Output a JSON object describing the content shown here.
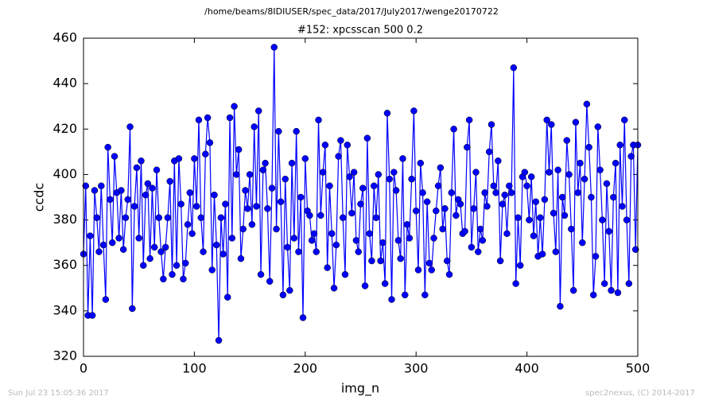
{
  "chart_data": {
    "type": "line",
    "suptitle": "/home/beams/8IDIUSER/spec_data/2017/July2017/wenge20170722",
    "title": "#152: xpcsscan 500 0.2",
    "x_label": "img_n",
    "y_label": "ccdc",
    "x": [
      0,
      2,
      4,
      6,
      8,
      10,
      12,
      14,
      16,
      18,
      20,
      22,
      24,
      26,
      28,
      30,
      32,
      34,
      36,
      38,
      40,
      42,
      44,
      46,
      48,
      50,
      52,
      54,
      56,
      58,
      60,
      62,
      64,
      66,
      68,
      70,
      72,
      74,
      76,
      78,
      80,
      82,
      84,
      86,
      88,
      90,
      92,
      94,
      96,
      98,
      100,
      102,
      104,
      106,
      108,
      110,
      112,
      114,
      116,
      118,
      120,
      122,
      124,
      126,
      128,
      130,
      132,
      134,
      136,
      138,
      140,
      142,
      144,
      146,
      148,
      150,
      152,
      154,
      156,
      158,
      160,
      162,
      164,
      166,
      168,
      170,
      172,
      174,
      176,
      178,
      180,
      182,
      184,
      186,
      188,
      190,
      192,
      194,
      196,
      198,
      200,
      202,
      204,
      206,
      208,
      210,
      212,
      214,
      216,
      218,
      220,
      222,
      224,
      226,
      228,
      230,
      232,
      234,
      236,
      238,
      240,
      242,
      244,
      246,
      248,
      250,
      252,
      254,
      256,
      258,
      260,
      262,
      264,
      266,
      268,
      270,
      272,
      274,
      276,
      278,
      280,
      282,
      284,
      286,
      288,
      290,
      292,
      294,
      296,
      298,
      300,
      302,
      304,
      306,
      308,
      310,
      312,
      314,
      316,
      318,
      320,
      322,
      324,
      326,
      328,
      330,
      332,
      334,
      336,
      338,
      340,
      342,
      344,
      346,
      348,
      350,
      352,
      354,
      356,
      358,
      360,
      362,
      364,
      366,
      368,
      370,
      372,
      374,
      376,
      378,
      380,
      382,
      384,
      386,
      388,
      390,
      392,
      394,
      396,
      398,
      400,
      402,
      404,
      406,
      408,
      410,
      412,
      414,
      416,
      418,
      420,
      422,
      424,
      426,
      428,
      430,
      432,
      434,
      436,
      438,
      440,
      442,
      444,
      446,
      448,
      450,
      452,
      454,
      456,
      458,
      460,
      462,
      464,
      466,
      468,
      470,
      472,
      474,
      476,
      478,
      480,
      482,
      484,
      486,
      488,
      490,
      492,
      494,
      496,
      498,
      500
    ],
    "series": [
      {
        "color": "#0000ff",
        "values": [
          365,
          395,
          338,
          373,
          338,
          393,
          381,
          366,
          395,
          369,
          345,
          412,
          389,
          370,
          408,
          392,
          372,
          393,
          367,
          381,
          389,
          421,
          341,
          386,
          403,
          372,
          406,
          360,
          391,
          396,
          363,
          394,
          368,
          402,
          381,
          366,
          354,
          368,
          381,
          397,
          356,
          406,
          360,
          407,
          387,
          354,
          361,
          378,
          392,
          374,
          407,
          386,
          424,
          381,
          366,
          409,
          425,
          414,
          358,
          391,
          369,
          327,
          381,
          365,
          387,
          346,
          425,
          372,
          430,
          400,
          411,
          363,
          376,
          393,
          385,
          400,
          378,
          421,
          386,
          428,
          356,
          402,
          405,
          385,
          353,
          394,
          456,
          376,
          419,
          388,
          347,
          398,
          368,
          349,
          405,
          372,
          419,
          366,
          390,
          337,
          407,
          384,
          382,
          371,
          374,
          366,
          424,
          382,
          401,
          413,
          359,
          395,
          374,
          350,
          369,
          408,
          415,
          381,
          356,
          413,
          399,
          383,
          401,
          371,
          366,
          387,
          394,
          351,
          416,
          374,
          362,
          395,
          381,
          400,
          362,
          370,
          352,
          427,
          398,
          345,
          401,
          393,
          371,
          363,
          407,
          347,
          378,
          372,
          398,
          428,
          384,
          358,
          405,
          392,
          347,
          388,
          361,
          358,
          372,
          384,
          395,
          403,
          376,
          385,
          362,
          356,
          392,
          420,
          382,
          389,
          387,
          374,
          375,
          412,
          424,
          368,
          385,
          401,
          366,
          376,
          371,
          392,
          386,
          410,
          422,
          395,
          392,
          406,
          362,
          387,
          391,
          374,
          395,
          392,
          447,
          352,
          381,
          360,
          399,
          401,
          395,
          380,
          399,
          373,
          388,
          364,
          381,
          365,
          389,
          424,
          401,
          422,
          383,
          366,
          402,
          342,
          390,
          382,
          415,
          400,
          376,
          349,
          423,
          392,
          405,
          370,
          398,
          431,
          412,
          390,
          347,
          364,
          421,
          402,
          380,
          352,
          396,
          375,
          349,
          390,
          405,
          348,
          413,
          386,
          424,
          380,
          352,
          408,
          413,
          367,
          413
        ]
      }
    ],
    "xlim": [
      0,
      500
    ],
    "xticks": [
      0,
      100,
      200,
      300,
      400,
      500
    ],
    "ylim": [
      320,
      460
    ],
    "yticks": [
      320,
      340,
      360,
      380,
      400,
      420,
      440,
      460
    ]
  },
  "footer": {
    "left": "Sun Jul 23 15:05:36 2017",
    "right": "spec2nexus, (C) 2014-2017"
  }
}
